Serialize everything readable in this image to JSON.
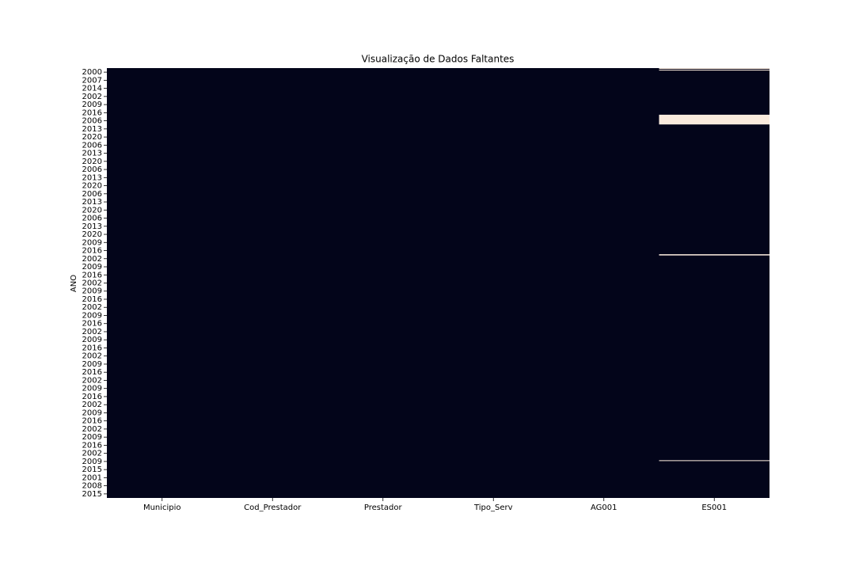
{
  "chart_data": {
    "type": "heatmap",
    "title": "Visualização de Dados Faltantes",
    "ylabel": "ANO",
    "columns": [
      "Municipio",
      "Cod_Prestador",
      "Prestador",
      "Tipo_Serv",
      "AG001",
      "ES001"
    ],
    "rows": [
      "2000",
      "2007",
      "2014",
      "2002",
      "2009",
      "2016",
      "2006",
      "2013",
      "2020",
      "2006",
      "2013",
      "2020",
      "2006",
      "2013",
      "2020",
      "2006",
      "2013",
      "2020",
      "2006",
      "2013",
      "2020",
      "2009",
      "2016",
      "2002",
      "2009",
      "2016",
      "2002",
      "2009",
      "2016",
      "2002",
      "2009",
      "2016",
      "2002",
      "2009",
      "2016",
      "2002",
      "2009",
      "2016",
      "2002",
      "2009",
      "2016",
      "2002",
      "2009",
      "2016",
      "2002",
      "2009",
      "2016",
      "2002",
      "2009",
      "2015",
      "2001",
      "2008",
      "2015"
    ],
    "missing": [
      [],
      [],
      [],
      [],
      [],
      [
        [
          0,
          0.1
        ],
        [
          0.2,
          0.3
        ],
        [
          5.75,
          6.95
        ],
        [
          22.95,
          23.1
        ],
        [
          48.35,
          48.45
        ]
      ]
    ],
    "present_color": "#03051a",
    "missing_color": "#faebdd"
  }
}
